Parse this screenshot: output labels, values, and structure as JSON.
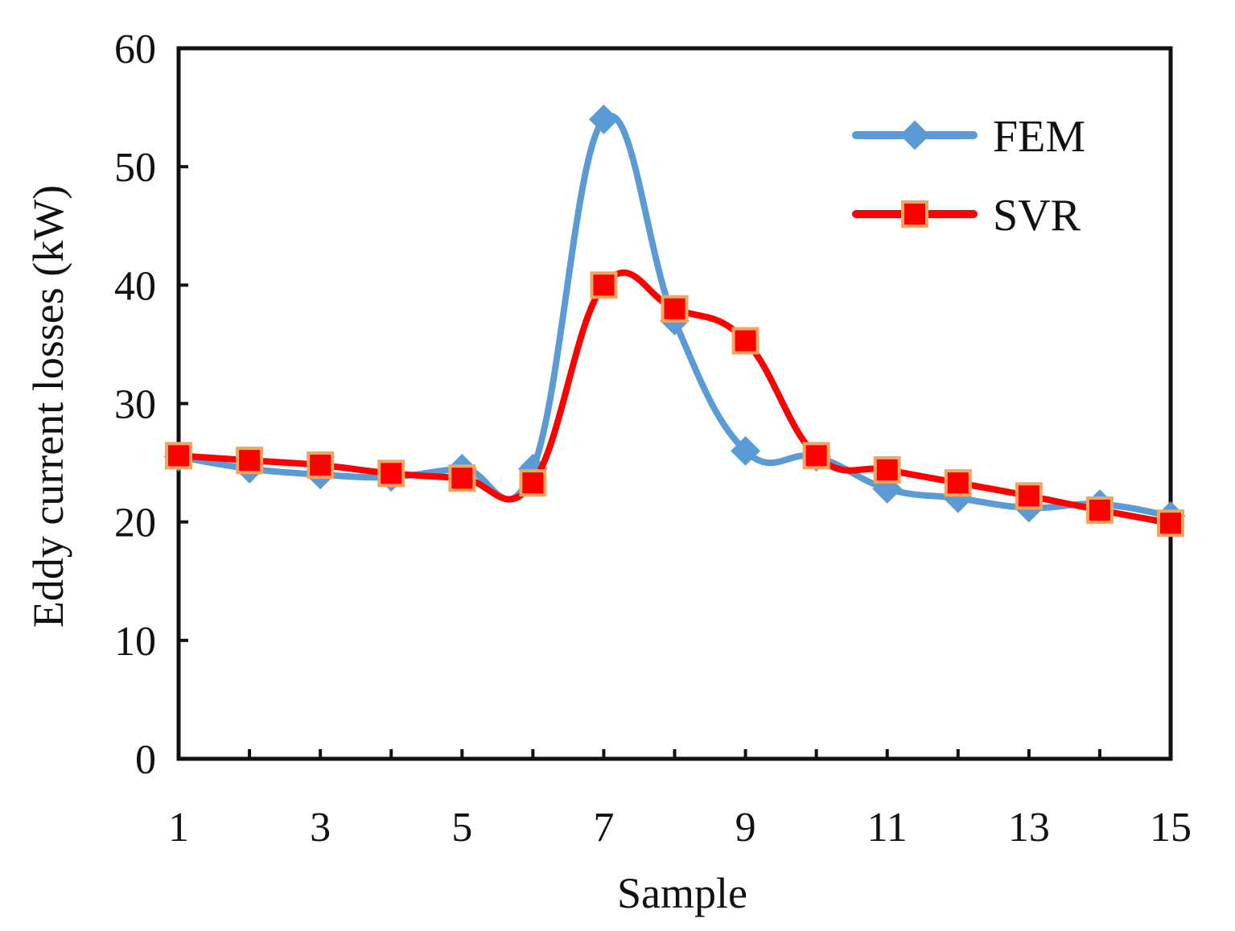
{
  "chart_data": {
    "type": "line",
    "title": "",
    "xlabel": "Sample",
    "ylabel": "Eddy current losses (kW)",
    "x": [
      1,
      2,
      3,
      4,
      5,
      6,
      7,
      8,
      9,
      10,
      11,
      12,
      13,
      14,
      15
    ],
    "x_tick_labels": [
      "1",
      "3",
      "5",
      "7",
      "9",
      "11",
      "13",
      "15"
    ],
    "x_tick_values": [
      1,
      3,
      5,
      7,
      9,
      11,
      13,
      15
    ],
    "y_tick_labels": [
      "0",
      "10",
      "20",
      "30",
      "40",
      "50",
      "60"
    ],
    "y_tick_values": [
      0,
      10,
      20,
      30,
      40,
      50,
      60
    ],
    "xlim": [
      1,
      15
    ],
    "ylim": [
      0,
      60
    ],
    "grid": false,
    "legend_position": "top-right",
    "series": [
      {
        "name": "FEM",
        "color": "#5B9BD5",
        "marker": "diamond",
        "values": [
          25.5,
          24.5,
          24.0,
          23.8,
          24.5,
          24.5,
          54.0,
          37.0,
          26.0,
          25.5,
          22.8,
          22.0,
          21.2,
          21.5,
          20.5
        ]
      },
      {
        "name": "SVR",
        "color": "#FF0000",
        "marker": "square",
        "marker_edge": "#F4A460",
        "values": [
          25.6,
          25.2,
          24.8,
          24.1,
          23.7,
          23.3,
          40.0,
          38.0,
          35.3,
          25.6,
          24.4,
          23.3,
          22.2,
          21.0,
          19.9
        ]
      }
    ]
  }
}
